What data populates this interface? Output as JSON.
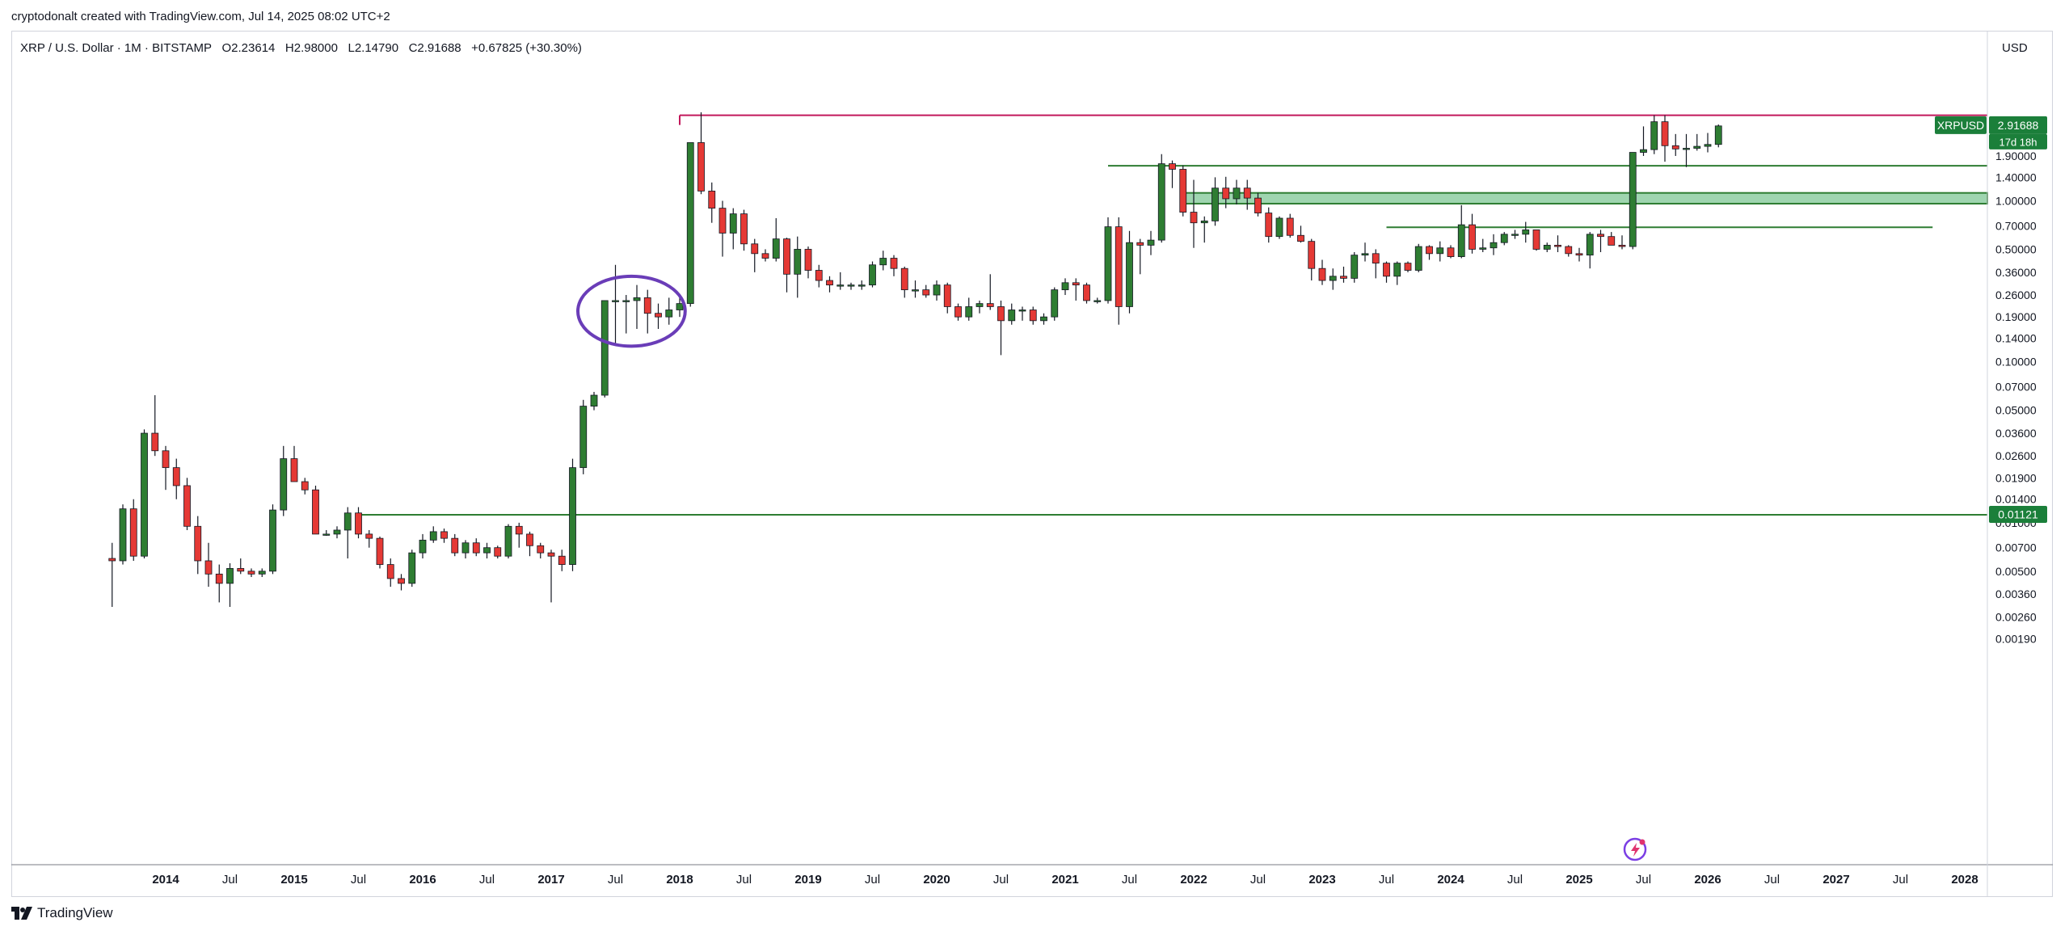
{
  "header": {
    "credit": "cryptodonalt created with TradingView.com, Jul 14, 2025 08:02 UTC+2"
  },
  "legend": {
    "symbol": "XRP / U.S. Dollar · 1M · BITSTAMP",
    "open": "O2.23614",
    "high": "H2.98000",
    "low": "L2.14790",
    "close": "C2.91688",
    "change": "+0.67825 (+30.30%)"
  },
  "price_axis": {
    "currency": "USD"
  },
  "badges": {
    "symbol": "XRPUSD",
    "price": "2.91688",
    "countdown": "17d 18h",
    "support_price": "0.01121"
  },
  "footer": {
    "brand": "TradingView"
  },
  "colors": {
    "up": "#2e7d32",
    "down": "#e53935",
    "resistance": "#c2185b",
    "support": "#2e7d32",
    "zone_fill": "#9fd5b0",
    "annotation": "#6a3db8",
    "badge_green": "#1b7f3a"
  },
  "chart_data": {
    "type": "candlestick",
    "symbol": "XRP / U.S. Dollar",
    "interval": "1M",
    "exchange": "BITSTAMP",
    "y_scale": "log",
    "ylim": [
      0.0019,
      4.0
    ],
    "y_ticks": [
      "1.90000",
      "1.40000",
      "1.00000",
      "0.70000",
      "0.50000",
      "0.36000",
      "0.26000",
      "0.19000",
      "0.14000",
      "0.10000",
      "0.07000",
      "0.05000",
      "0.03600",
      "0.02600",
      "0.01900",
      "0.01400",
      "0.01000",
      "0.00700",
      "0.00500",
      "0.00360",
      "0.00260",
      "0.00190"
    ],
    "x_ticks": [
      {
        "label": "2014",
        "date": "2014-01"
      },
      {
        "label": "Jul",
        "date": "2014-07"
      },
      {
        "label": "2015",
        "date": "2015-01"
      },
      {
        "label": "Jul",
        "date": "2015-07"
      },
      {
        "label": "2016",
        "date": "2016-01"
      },
      {
        "label": "Jul",
        "date": "2016-07"
      },
      {
        "label": "2017",
        "date": "2017-01"
      },
      {
        "label": "Jul",
        "date": "2017-07"
      },
      {
        "label": "2018",
        "date": "2018-01"
      },
      {
        "label": "Jul",
        "date": "2018-07"
      },
      {
        "label": "2019",
        "date": "2019-01"
      },
      {
        "label": "Jul",
        "date": "2019-07"
      },
      {
        "label": "2020",
        "date": "2020-01"
      },
      {
        "label": "Jul",
        "date": "2020-07"
      },
      {
        "label": "2021",
        "date": "2021-01"
      },
      {
        "label": "Jul",
        "date": "2021-07"
      },
      {
        "label": "2022",
        "date": "2022-01"
      },
      {
        "label": "Jul",
        "date": "2022-07"
      },
      {
        "label": "2023",
        "date": "2023-01"
      },
      {
        "label": "Jul",
        "date": "2023-07"
      },
      {
        "label": "2024",
        "date": "2024-01"
      },
      {
        "label": "Jul",
        "date": "2024-07"
      },
      {
        "label": "2025",
        "date": "2025-01"
      },
      {
        "label": "Jul",
        "date": "2025-07"
      },
      {
        "label": "2026",
        "date": "2026-01"
      },
      {
        "label": "Jul",
        "date": "2026-07"
      },
      {
        "label": "2027",
        "date": "2027-01"
      },
      {
        "label": "Jul",
        "date": "2027-07"
      },
      {
        "label": "2028",
        "date": "2028-01"
      }
    ],
    "candles_start": "2013-08",
    "candles": [
      [
        0.006,
        0.0075,
        0.003,
        0.0058
      ],
      [
        0.0058,
        0.013,
        0.0055,
        0.0122
      ],
      [
        0.0122,
        0.014,
        0.0058,
        0.0062
      ],
      [
        0.0062,
        0.038,
        0.006,
        0.036
      ],
      [
        0.036,
        0.062,
        0.026,
        0.028
      ],
      [
        0.028,
        0.03,
        0.016,
        0.022
      ],
      [
        0.022,
        0.025,
        0.014,
        0.017
      ],
      [
        0.017,
        0.019,
        0.009,
        0.0095
      ],
      [
        0.0095,
        0.011,
        0.0048,
        0.0058
      ],
      [
        0.0058,
        0.0075,
        0.004,
        0.0048
      ],
      [
        0.0048,
        0.0055,
        0.0032,
        0.0042
      ],
      [
        0.0042,
        0.0056,
        0.003,
        0.0052
      ],
      [
        0.0052,
        0.006,
        0.0048,
        0.005
      ],
      [
        0.005,
        0.0052,
        0.0046,
        0.0048
      ],
      [
        0.0048,
        0.0052,
        0.0046,
        0.005
      ],
      [
        0.005,
        0.013,
        0.0048,
        0.012
      ],
      [
        0.012,
        0.03,
        0.011,
        0.025
      ],
      [
        0.025,
        0.03,
        0.018,
        0.018
      ],
      [
        0.018,
        0.019,
        0.015,
        0.016
      ],
      [
        0.016,
        0.017,
        0.0085,
        0.0085
      ],
      [
        0.0085,
        0.009,
        0.0083,
        0.0085
      ],
      [
        0.0085,
        0.0095,
        0.008,
        0.009
      ],
      [
        0.009,
        0.0125,
        0.006,
        0.0115
      ],
      [
        0.0115,
        0.0125,
        0.008,
        0.0085
      ],
      [
        0.0085,
        0.009,
        0.007,
        0.008
      ],
      [
        0.008,
        0.0082,
        0.0052,
        0.0055
      ],
      [
        0.0055,
        0.006,
        0.004,
        0.0045
      ],
      [
        0.0045,
        0.0048,
        0.0038,
        0.0042
      ],
      [
        0.0042,
        0.0068,
        0.004,
        0.0065
      ],
      [
        0.0065,
        0.0085,
        0.006,
        0.0078
      ],
      [
        0.0078,
        0.0095,
        0.0075,
        0.0088
      ],
      [
        0.0088,
        0.0092,
        0.0075,
        0.008
      ],
      [
        0.008,
        0.0085,
        0.0062,
        0.0065
      ],
      [
        0.0065,
        0.0078,
        0.006,
        0.0075
      ],
      [
        0.0075,
        0.008,
        0.0062,
        0.0065
      ],
      [
        0.0065,
        0.0075,
        0.006,
        0.007
      ],
      [
        0.007,
        0.0072,
        0.006,
        0.0062
      ],
      [
        0.0062,
        0.0098,
        0.006,
        0.0095
      ],
      [
        0.0095,
        0.01,
        0.007,
        0.0085
      ],
      [
        0.0085,
        0.0088,
        0.0062,
        0.0072
      ],
      [
        0.0072,
        0.0075,
        0.006,
        0.0065
      ],
      [
        0.0065,
        0.0068,
        0.0032,
        0.0062
      ],
      [
        0.0062,
        0.0068,
        0.005,
        0.0055
      ],
      [
        0.0055,
        0.025,
        0.005,
        0.022
      ],
      [
        0.022,
        0.058,
        0.02,
        0.053
      ],
      [
        0.053,
        0.065,
        0.05,
        0.062
      ],
      [
        0.062,
        0.24,
        0.06,
        0.24
      ],
      [
        0.24,
        0.4,
        0.13,
        0.24
      ],
      [
        0.24,
        0.26,
        0.15,
        0.24
      ],
      [
        0.24,
        0.3,
        0.16,
        0.25
      ],
      [
        0.25,
        0.28,
        0.15,
        0.2
      ],
      [
        0.2,
        0.23,
        0.16,
        0.19
      ],
      [
        0.19,
        0.25,
        0.17,
        0.21
      ],
      [
        0.21,
        0.26,
        0.19,
        0.23
      ],
      [
        0.23,
        2.3,
        0.22,
        2.3
      ],
      [
        2.3,
        3.55,
        1.1,
        1.15
      ],
      [
        1.15,
        1.3,
        0.73,
        0.9
      ],
      [
        0.9,
        1.0,
        0.45,
        0.63
      ],
      [
        0.63,
        0.9,
        0.5,
        0.83
      ],
      [
        0.83,
        0.88,
        0.49,
        0.54
      ],
      [
        0.54,
        0.58,
        0.36,
        0.47
      ],
      [
        0.47,
        0.5,
        0.42,
        0.44
      ],
      [
        0.44,
        0.78,
        0.42,
        0.58
      ],
      [
        0.58,
        0.59,
        0.27,
        0.35
      ],
      [
        0.35,
        0.6,
        0.25,
        0.5
      ],
      [
        0.5,
        0.52,
        0.33,
        0.37
      ],
      [
        0.37,
        0.4,
        0.29,
        0.32
      ],
      [
        0.32,
        0.34,
        0.27,
        0.3
      ],
      [
        0.3,
        0.36,
        0.28,
        0.3
      ],
      [
        0.3,
        0.31,
        0.28,
        0.3
      ],
      [
        0.3,
        0.32,
        0.28,
        0.3
      ],
      [
        0.3,
        0.42,
        0.29,
        0.4
      ],
      [
        0.4,
        0.49,
        0.37,
        0.44
      ],
      [
        0.44,
        0.46,
        0.34,
        0.38
      ],
      [
        0.38,
        0.39,
        0.25,
        0.28
      ],
      [
        0.28,
        0.32,
        0.25,
        0.28
      ],
      [
        0.28,
        0.3,
        0.25,
        0.26
      ],
      [
        0.26,
        0.32,
        0.24,
        0.3
      ],
      [
        0.3,
        0.31,
        0.2,
        0.22
      ],
      [
        0.22,
        0.23,
        0.18,
        0.19
      ],
      [
        0.19,
        0.25,
        0.18,
        0.22
      ],
      [
        0.22,
        0.24,
        0.2,
        0.23
      ],
      [
        0.23,
        0.35,
        0.21,
        0.22
      ],
      [
        0.22,
        0.24,
        0.11,
        0.18
      ],
      [
        0.18,
        0.23,
        0.17,
        0.21
      ],
      [
        0.21,
        0.22,
        0.18,
        0.21
      ],
      [
        0.21,
        0.22,
        0.17,
        0.18
      ],
      [
        0.18,
        0.2,
        0.17,
        0.19
      ],
      [
        0.19,
        0.29,
        0.18,
        0.28
      ],
      [
        0.28,
        0.33,
        0.26,
        0.31
      ],
      [
        0.31,
        0.33,
        0.24,
        0.3
      ],
      [
        0.3,
        0.31,
        0.23,
        0.24
      ],
      [
        0.24,
        0.25,
        0.23,
        0.24
      ],
      [
        0.24,
        0.79,
        0.23,
        0.69
      ],
      [
        0.69,
        0.79,
        0.17,
        0.22
      ],
      [
        0.22,
        0.65,
        0.2,
        0.55
      ],
      [
        0.55,
        0.58,
        0.35,
        0.53
      ],
      [
        0.53,
        0.65,
        0.46,
        0.57
      ],
      [
        0.57,
        1.95,
        0.55,
        1.7
      ],
      [
        1.7,
        1.78,
        1.2,
        1.57
      ],
      [
        1.57,
        1.66,
        0.8,
        0.85
      ],
      [
        0.85,
        1.35,
        0.51,
        0.73
      ],
      [
        0.73,
        0.8,
        0.55,
        0.75
      ],
      [
        0.75,
        1.4,
        0.7,
        1.2
      ],
      [
        1.2,
        1.41,
        0.9,
        1.03
      ],
      [
        1.03,
        1.35,
        0.95,
        1.2
      ],
      [
        1.2,
        1.35,
        0.88,
        1.04
      ],
      [
        1.04,
        1.12,
        0.8,
        0.84
      ],
      [
        0.84,
        0.91,
        0.55,
        0.6
      ],
      [
        0.6,
        0.8,
        0.58,
        0.78
      ],
      [
        0.78,
        0.83,
        0.59,
        0.61
      ],
      [
        0.61,
        0.7,
        0.55,
        0.56
      ],
      [
        0.56,
        0.58,
        0.32,
        0.38
      ],
      [
        0.38,
        0.43,
        0.3,
        0.32
      ],
      [
        0.32,
        0.38,
        0.28,
        0.34
      ],
      [
        0.34,
        0.39,
        0.31,
        0.33
      ],
      [
        0.33,
        0.48,
        0.31,
        0.46
      ],
      [
        0.46,
        0.55,
        0.42,
        0.47
      ],
      [
        0.47,
        0.5,
        0.33,
        0.41
      ],
      [
        0.41,
        0.42,
        0.31,
        0.34
      ],
      [
        0.34,
        0.42,
        0.3,
        0.41
      ],
      [
        0.41,
        0.42,
        0.36,
        0.37
      ],
      [
        0.37,
        0.54,
        0.36,
        0.52
      ],
      [
        0.52,
        0.53,
        0.43,
        0.47
      ],
      [
        0.47,
        0.56,
        0.42,
        0.51
      ],
      [
        0.51,
        0.53,
        0.44,
        0.45
      ],
      [
        0.45,
        0.94,
        0.44,
        0.71
      ],
      [
        0.71,
        0.83,
        0.47,
        0.5
      ],
      [
        0.5,
        0.58,
        0.48,
        0.51
      ],
      [
        0.51,
        0.62,
        0.46,
        0.55
      ],
      [
        0.55,
        0.64,
        0.53,
        0.62
      ],
      [
        0.62,
        0.66,
        0.58,
        0.62
      ],
      [
        0.62,
        0.74,
        0.55,
        0.66
      ],
      [
        0.66,
        0.66,
        0.49,
        0.5
      ],
      [
        0.5,
        0.55,
        0.48,
        0.53
      ],
      [
        0.53,
        0.61,
        0.48,
        0.52
      ],
      [
        0.52,
        0.53,
        0.45,
        0.47
      ],
      [
        0.47,
        0.51,
        0.42,
        0.46
      ],
      [
        0.46,
        0.64,
        0.38,
        0.62
      ],
      [
        0.62,
        0.66,
        0.48,
        0.6
      ],
      [
        0.6,
        0.64,
        0.54,
        0.53
      ],
      [
        0.53,
        0.61,
        0.5,
        0.52
      ],
      [
        0.52,
        2.0,
        0.5,
        2.0
      ],
      [
        2.0,
        2.9,
        1.9,
        2.08
      ],
      [
        2.08,
        3.4,
        1.95,
        3.1
      ],
      [
        3.1,
        3.4,
        1.75,
        2.2
      ],
      [
        2.2,
        2.6,
        1.9,
        2.1
      ],
      [
        2.1,
        2.6,
        1.62,
        2.12
      ],
      [
        2.12,
        2.6,
        2.05,
        2.18
      ],
      [
        2.18,
        2.64,
        2.0,
        2.24
      ],
      [
        2.24,
        2.98,
        2.15,
        2.92
      ]
    ],
    "lines": [
      {
        "kind": "resistance",
        "price": 3.4,
        "from": "2018-01",
        "color": "#c2185b"
      },
      {
        "kind": "support",
        "price": 1.65,
        "from": "2021-05",
        "color": "#2e7d32"
      },
      {
        "kind": "zone",
        "price_low": 0.96,
        "price_high": 1.12,
        "from": "2021-12",
        "color": "#9fd5b0"
      },
      {
        "kind": "support",
        "price": 0.685,
        "from": "2023-07",
        "to": "2027-10",
        "color": "#2e7d32"
      },
      {
        "kind": "support",
        "price": 0.01121,
        "from": "2015-07",
        "color": "#2e7d32"
      }
    ],
    "annotation": {
      "kind": "ellipse",
      "from": "2017-05",
      "to": "2017-12",
      "price_low": 0.125,
      "price_high": 0.34,
      "color": "#6a3db8"
    }
  }
}
